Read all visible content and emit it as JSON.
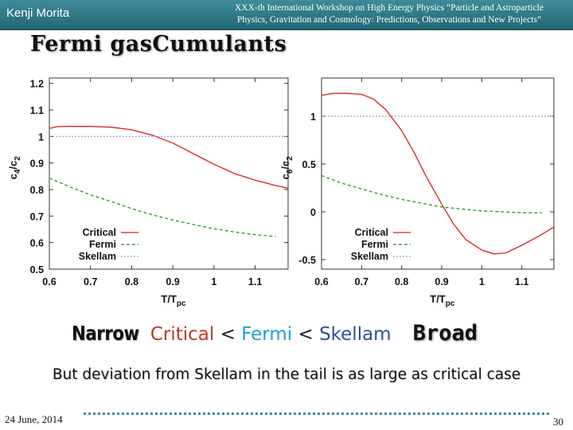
{
  "header": {
    "author": "Kenji Morita",
    "workshop_line1": "XXX-th International Workshop on High Energy Physics “Particle and Astroparticle",
    "workshop_line2": "Physics, Gravitation and Cosmology: Predictions, Observations and New Projects”"
  },
  "title": {
    "part1": "Fermi gas",
    "part2": "Cumulants"
  },
  "comparison": {
    "narrow": "Narrow",
    "critical": "Critical",
    "lt1": " < ",
    "fermi": "Fermi",
    "lt2": " < ",
    "skellam": "Skellam",
    "broad": "Broad"
  },
  "note": "But deviation from Skellam in the tail is as large as critical case",
  "footer": {
    "date": "24 June, 2014",
    "page": "30"
  },
  "colors": {
    "critical": "#d62020",
    "fermi": "#1f9a1f",
    "skellam": "#8888cc",
    "header": "#2f7b8a"
  },
  "chart_data": [
    {
      "type": "line",
      "ylabel_main": "c",
      "ylabel_num_sub": "4",
      "ylabel_slash": "/c",
      "ylabel_den_sub": "2",
      "xlabel_main": "T/T",
      "xlabel_sub": "pc",
      "xlim": [
        0.6,
        1.18
      ],
      "ylim": [
        0.5,
        1.22
      ],
      "xticks": [
        0.6,
        0.7,
        0.8,
        0.9,
        1.0,
        1.1
      ],
      "xtick_labels": [
        "0.6",
        "0.7",
        "0.8",
        "0.9",
        "1",
        "1.1"
      ],
      "yticks": [
        0.5,
        0.6,
        0.7,
        0.8,
        0.9,
        1.0,
        1.1,
        1.2
      ],
      "ytick_labels": [
        "0.5",
        "0.6",
        "0.7",
        "0.8",
        "0.9",
        "1",
        "1.1",
        "1.2"
      ],
      "legend_position": "bottom-left",
      "series": [
        {
          "name": "Critical",
          "style": "solid",
          "x": [
            0.6,
            0.62,
            0.65,
            0.7,
            0.75,
            0.8,
            0.85,
            0.9,
            0.95,
            1.0,
            1.05,
            1.1,
            1.15,
            1.18
          ],
          "y": [
            1.03,
            1.037,
            1.038,
            1.038,
            1.035,
            1.025,
            1.005,
            0.975,
            0.935,
            0.895,
            0.86,
            0.835,
            0.815,
            0.805
          ]
        },
        {
          "name": "Fermi",
          "style": "dashed",
          "x": [
            0.6,
            0.65,
            0.7,
            0.75,
            0.8,
            0.85,
            0.9,
            0.95,
            1.0,
            1.05,
            1.1,
            1.15
          ],
          "y": [
            0.843,
            0.81,
            0.78,
            0.755,
            0.728,
            0.705,
            0.685,
            0.668,
            0.652,
            0.64,
            0.63,
            0.623
          ]
        },
        {
          "name": "Skellam",
          "style": "dotted",
          "x": [
            0.6,
            1.18
          ],
          "y": [
            1.0,
            1.0
          ]
        }
      ]
    },
    {
      "type": "line",
      "ylabel_main": "c",
      "ylabel_num_sub": "6",
      "ylabel_slash": "/c",
      "ylabel_den_sub": "2",
      "xlabel_main": "T/T",
      "xlabel_sub": "pc",
      "xlim": [
        0.6,
        1.18
      ],
      "ylim": [
        -0.6,
        1.4
      ],
      "xticks": [
        0.6,
        0.7,
        0.8,
        0.9,
        1.0,
        1.1
      ],
      "xtick_labels": [
        "0.6",
        "0.7",
        "0.8",
        "0.9",
        "1",
        "1.1"
      ],
      "yticks": [
        -0.5,
        0.0,
        0.5,
        1.0
      ],
      "ytick_labels": [
        "-0.5",
        "0",
        "0.5",
        "1"
      ],
      "legend_position": "bottom-left",
      "series": [
        {
          "name": "Critical",
          "style": "solid",
          "x": [
            0.6,
            0.63,
            0.66,
            0.7,
            0.73,
            0.76,
            0.8,
            0.83,
            0.86,
            0.9,
            0.93,
            0.96,
            1.0,
            1.03,
            1.06,
            1.1,
            1.14,
            1.18
          ],
          "y": [
            1.22,
            1.24,
            1.24,
            1.23,
            1.18,
            1.07,
            0.85,
            0.63,
            0.38,
            0.08,
            -0.13,
            -0.29,
            -0.4,
            -0.44,
            -0.43,
            -0.35,
            -0.26,
            -0.16
          ]
        },
        {
          "name": "Fermi",
          "style": "dashed",
          "x": [
            0.6,
            0.65,
            0.7,
            0.75,
            0.8,
            0.85,
            0.9,
            0.95,
            1.0,
            1.05,
            1.1,
            1.15
          ],
          "y": [
            0.38,
            0.3,
            0.24,
            0.18,
            0.13,
            0.09,
            0.05,
            0.03,
            0.01,
            0.0,
            -0.01,
            -0.01
          ]
        },
        {
          "name": "Skellam",
          "style": "dotted",
          "x": [
            0.6,
            1.18
          ],
          "y": [
            1.0,
            1.0
          ]
        }
      ]
    }
  ]
}
